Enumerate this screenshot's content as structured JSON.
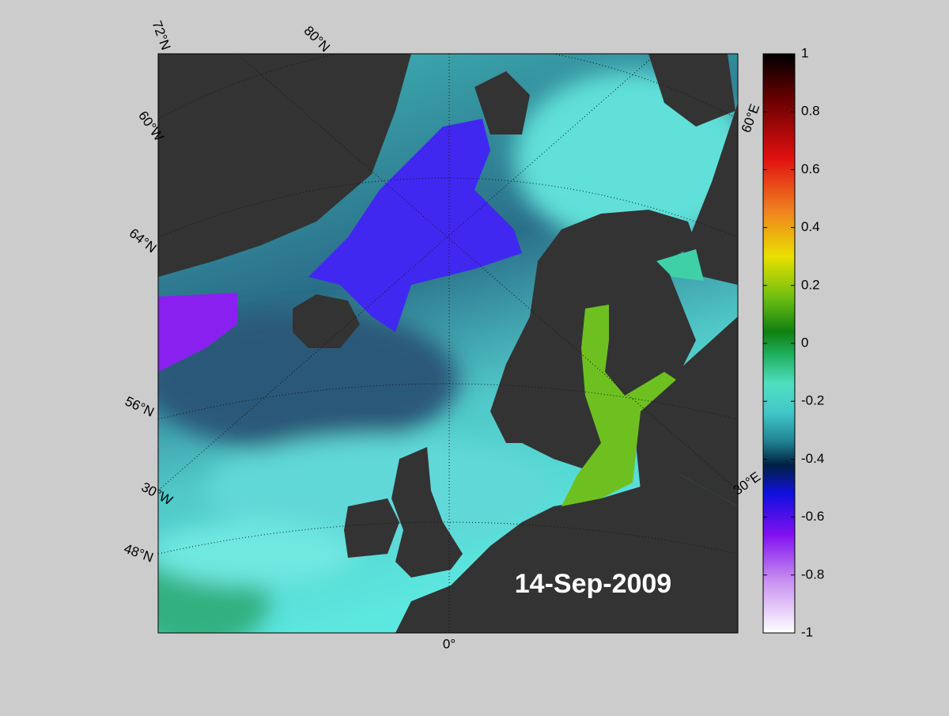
{
  "map": {
    "date_label": "14-Sep-2009",
    "graticule_labels": [
      "72°N",
      "80°N",
      "60°W",
      "64°N",
      "56°N",
      "30°W",
      "48°N",
      "0°",
      "60°E",
      "30°E"
    ]
  },
  "colorbar": {
    "lim": [
      -1,
      1
    ],
    "ticks": [
      1,
      0.8,
      0.6,
      0.4,
      0.2,
      0,
      -0.2,
      -0.4,
      -0.6,
      -0.8,
      -1
    ]
  }
}
